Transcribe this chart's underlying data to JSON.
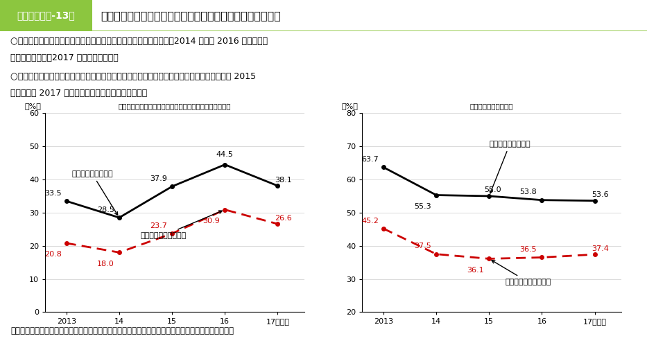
{
  "title_box": "第２－（２）-13図",
  "title_main": "キャリアコンサルティングや職業能力評価の導入・実施状況",
  "bullet1_line1": "○　キャリアコンサルティングを行う仕組みのある事業所の割合は、2014 年から 2016 年にかけて",
  "bullet1_line2": "　　上昇したが、2017 年には低下した。",
  "bullet2_line1": "○　職業能力評価の実施率は、正社員対象が緩やかに低下傾向にある一方で、非正社員対象は 2015",
  "bullet2_line2": "　　年から 2017 年にかけて緩やかに上昇している。",
  "source": "資料出所　厚生労働省「能力開発基本調査」の個票をもとに厚生労働省労働政策担当参事官室にて作成",
  "left_chart": {
    "title": "キャリアコンサルティングを行う仕組みのある事業所割合",
    "ylabel": "（%）",
    "xlabels": [
      "2013",
      "14",
      "15",
      "16",
      "17（年）"
    ],
    "xvals": [
      2013,
      2014,
      2015,
      2016,
      2017
    ],
    "ylim": [
      0,
      60
    ],
    "yticks": [
      0,
      10,
      20,
      30,
      40,
      50,
      60
    ],
    "series_black": [
      33.5,
      28.5,
      37.9,
      44.5,
      38.1
    ],
    "series_red": [
      20.8,
      18.0,
      23.7,
      30.9,
      26.6
    ],
    "label_black": "正社員を対象に導入",
    "label_red": "非正社員を対象に導入"
  },
  "right_chart": {
    "title": "職業能力評価の実施率",
    "ylabel": "（%）",
    "xlabels": [
      "2013",
      "14",
      "15",
      "16",
      "17（年）"
    ],
    "xvals": [
      2013,
      2014,
      2015,
      2016,
      2017
    ],
    "ylim": [
      20,
      80
    ],
    "yticks": [
      20,
      30,
      40,
      50,
      60,
      70,
      80
    ],
    "series_black": [
      63.7,
      55.3,
      55.0,
      53.8,
      53.6
    ],
    "series_red": [
      45.2,
      37.5,
      36.1,
      36.5,
      37.4
    ],
    "label_black": "正社員を対象に実施",
    "label_red": "非正社員を対象に実施"
  },
  "colors": {
    "black_line": "#000000",
    "red_line": "#cc0000",
    "title_box_bg": "#8cc63f",
    "title_box_border": "#8cc63f",
    "background": "#ffffff",
    "grid": "#cccccc"
  }
}
